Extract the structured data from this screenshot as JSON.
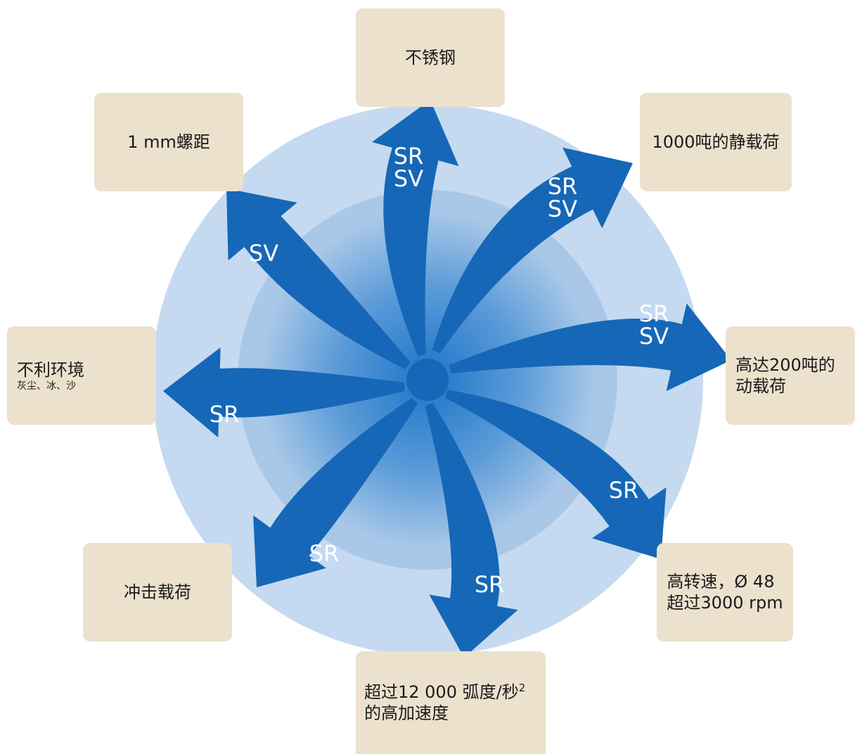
{
  "colors": {
    "box": "#ece1cd",
    "outer_ring": "#c5daf0",
    "inner_ring": "#a9c8e8",
    "hub": "#2e7fcf",
    "arrow": "#1667b7"
  },
  "boxes": {
    "stainless": {
      "lines": [
        "不锈钢"
      ]
    },
    "pitch": {
      "lines": [
        "1 mm螺距"
      ]
    },
    "static_load": {
      "lines": [
        "1000吨的静载荷"
      ]
    },
    "dynamic_load": {
      "lines": [
        "高达200吨的",
        "动载荷"
      ]
    },
    "harsh_env": {
      "title": "不利环境",
      "sub": "灰尘、冰、沙"
    },
    "high_speed": {
      "lines": [
        "高转速，Ø 48",
        "超过3000 rpm"
      ]
    },
    "shock_load": {
      "lines": [
        "冲击载荷"
      ]
    },
    "acceleration": {
      "line1": "超过12 000 弧度/秒",
      "sup": "2",
      "line2": "的高加速度"
    }
  },
  "arrows": {
    "top": {
      "lines": [
        "SR",
        "SV"
      ]
    },
    "top_right": {
      "lines": [
        "SR",
        "SV"
      ]
    },
    "right": {
      "lines": [
        "SR",
        "SV"
      ]
    },
    "top_left": {
      "lines": [
        "SV"
      ]
    },
    "left": {
      "lines": [
        "SR"
      ]
    },
    "bottom_right": {
      "lines": [
        "SR"
      ]
    },
    "bottom": {
      "lines": [
        "SR"
      ]
    },
    "bottom_left": {
      "lines": [
        "SR"
      ]
    }
  }
}
